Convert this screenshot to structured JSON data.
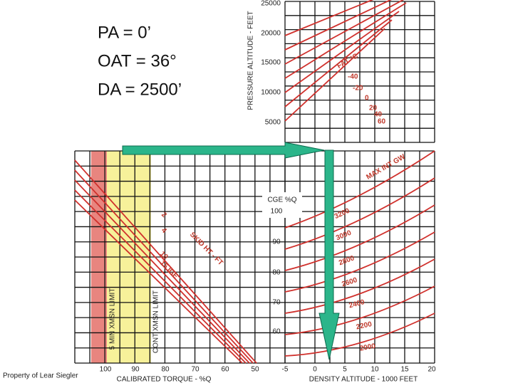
{
  "conditions": [
    "PA = 0’",
    "OAT = 36°",
    "DA = 2500’"
  ],
  "pressure_altitude": {
    "label": "PRESSURE ALTITUDE - FEET",
    "ticks": [
      "25000",
      "20000",
      "15000",
      "10000",
      "5000"
    ]
  },
  "fat": {
    "label": "FAT °C",
    "ticks": [
      "-40",
      "-20",
      "0",
      "20",
      "40",
      "60"
    ]
  },
  "cge": {
    "label": "CGE %Q",
    "ticks": [
      "100",
      "90",
      "80",
      "70",
      "60"
    ]
  },
  "torque": {
    "label": "CALIBRATED TORQUE - %Q",
    "ticks": [
      "100",
      "90",
      "80",
      "70",
      "60",
      "50"
    ]
  },
  "density_altitude": {
    "label": "DENSITY ALTITUDE - 1000 FEET",
    "ticks": [
      "-5",
      "0",
      "5",
      "10",
      "15",
      "20"
    ]
  },
  "gross_weight": {
    "label": "MAX INT GW",
    "ticks": [
      "2000",
      "2200",
      "2400",
      "2600",
      "2800",
      "3000",
      "3200"
    ]
  },
  "skid_height": {
    "label": "SKID HT - FT",
    "ticks": [
      "2",
      "4",
      "10",
      "15 IGE"
    ]
  },
  "limits": [
    "5 MIN XMSN LIMIT",
    "CONT XMSN LIMIT"
  ],
  "footer": "Property of Lear Siegler"
}
